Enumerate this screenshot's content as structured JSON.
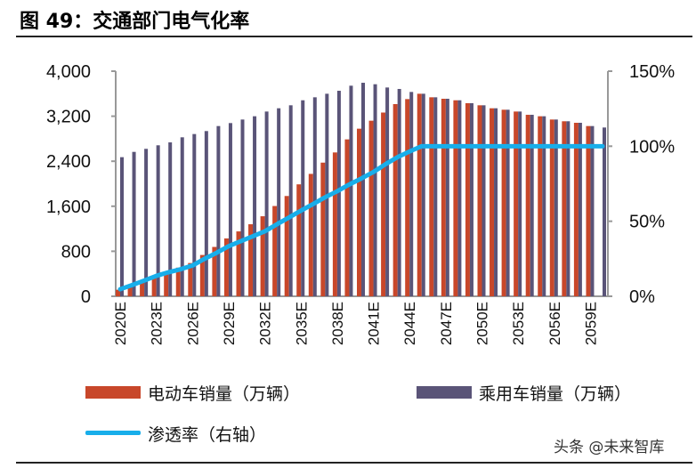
{
  "title": "图 49：交通部门电气化率",
  "watermark": "头条 @未来智库",
  "colors": {
    "ev": "#C8472A",
    "passenger": "#5A5478",
    "rate": "#18AEEA"
  },
  "chart_data": {
    "type": "bar",
    "title": "图 49：交通部门电气化率",
    "categories": [
      "2020E",
      "2021E",
      "2022E",
      "2023E",
      "2024E",
      "2025E",
      "2026E",
      "2027E",
      "2028E",
      "2029E",
      "2030E",
      "2031E",
      "2032E",
      "2033E",
      "2034E",
      "2035E",
      "2036E",
      "2037E",
      "2038E",
      "2039E",
      "2040E",
      "2041E",
      "2042E",
      "2043E",
      "2044E",
      "2045E",
      "2046E",
      "2047E",
      "2048E",
      "2049E",
      "2050E",
      "2051E",
      "2052E",
      "2053E",
      "2054E",
      "2055E",
      "2056E",
      "2057E",
      "2058E",
      "2059E",
      "2060E"
    ],
    "x_tick_labels": [
      "2020E",
      "2023E",
      "2026E",
      "2029E",
      "2032E",
      "2035E",
      "2038E",
      "2041E",
      "2044E",
      "2047E",
      "2050E",
      "2053E",
      "2056E",
      "2059E"
    ],
    "y_left": {
      "range": [
        0,
        4000
      ],
      "ticks": [
        "0",
        "800",
        "1,600",
        "2,400",
        "3,200",
        "4,000"
      ]
    },
    "y_right": {
      "range": [
        0,
        150
      ],
      "ticks": [
        "0%",
        "50%",
        "100%",
        "150%"
      ]
    },
    "grid": false,
    "legend_position": "bottom",
    "series": [
      {
        "name": "电动车销量（万辆）",
        "type": "bar",
        "axis": "left",
        "values": [
          116,
          192,
          275,
          365,
          438,
          509,
          591,
          734,
          877,
          1028,
          1153,
          1280,
          1422,
          1604,
          1782,
          1989,
          2175,
          2375,
          2556,
          2788,
          2978,
          3120,
          3265,
          3415,
          3504,
          3599,
          3536,
          3510,
          3483,
          3431,
          3394,
          3341,
          3315,
          3283,
          3225,
          3199,
          3141,
          3110,
          3083,
          3025,
          null
        ]
      },
      {
        "name": "乘用车销量（万辆）",
        "type": "bar",
        "axis": "left",
        "values": [
          2472,
          2566,
          2620,
          2683,
          2735,
          2825,
          2883,
          2936,
          3025,
          3078,
          3141,
          3199,
          3283,
          3341,
          3394,
          3483,
          3536,
          3599,
          3652,
          3742,
          3794,
          3768,
          3710,
          3684,
          3631,
          3599,
          3536,
          3510,
          3483,
          3431,
          3394,
          3341,
          3315,
          3283,
          3225,
          3199,
          3141,
          3110,
          3083,
          3025,
          2999
        ]
      },
      {
        "name": "渗透率（右轴）",
        "type": "line",
        "axis": "right",
        "values": [
          4.7,
          7.5,
          10.5,
          13.6,
          16,
          18,
          20.5,
          25,
          29,
          33.4,
          36.7,
          40,
          43.3,
          48,
          52.5,
          57.1,
          61.5,
          66,
          70,
          74.5,
          78.5,
          82.8,
          88,
          92.7,
          96.5,
          100,
          100,
          100,
          100,
          100,
          100,
          100,
          100,
          100,
          100,
          100,
          100,
          100,
          100,
          100,
          100
        ]
      }
    ]
  }
}
